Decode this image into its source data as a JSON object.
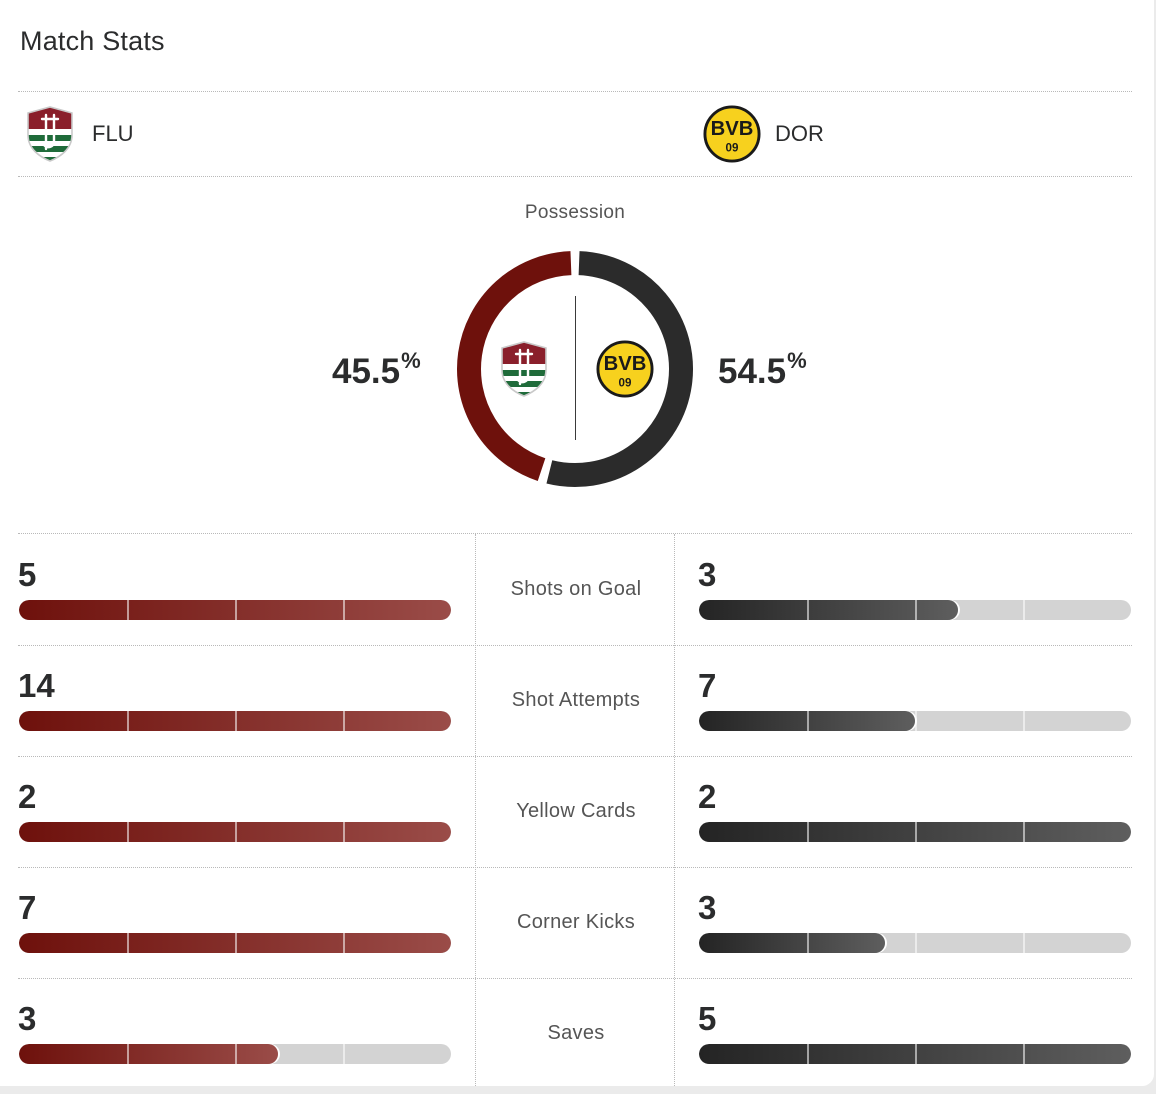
{
  "header": {
    "title": "Match Stats"
  },
  "teams": {
    "home": {
      "abbr": "FLU",
      "logo_icon": "fluminense-crest-icon",
      "color": "#6e110c"
    },
    "away": {
      "abbr": "DOR",
      "logo_icon": "bvb-crest-icon",
      "color": "#2b2b2b",
      "logo_text_top": "BVB",
      "logo_text_bottom": "09"
    }
  },
  "possession": {
    "label": "Possession",
    "home_value": "45.5",
    "away_value": "54.5",
    "pct_sign": "%",
    "home_fraction": 0.455,
    "away_fraction": 0.545
  },
  "stats": [
    {
      "label": "Shots on Goal",
      "home": "5",
      "away": "3",
      "home_fill": 1.0,
      "away_fill": 0.6
    },
    {
      "label": "Shot Attempts",
      "home": "14",
      "away": "7",
      "home_fill": 1.0,
      "away_fill": 0.5
    },
    {
      "label": "Yellow Cards",
      "home": "2",
      "away": "2",
      "home_fill": 1.0,
      "away_fill": 1.0
    },
    {
      "label": "Corner Kicks",
      "home": "7",
      "away": "3",
      "home_fill": 1.0,
      "away_fill": 0.43
    },
    {
      "label": "Saves",
      "home": "3",
      "away": "5",
      "home_fill": 0.6,
      "away_fill": 1.0
    }
  ]
}
